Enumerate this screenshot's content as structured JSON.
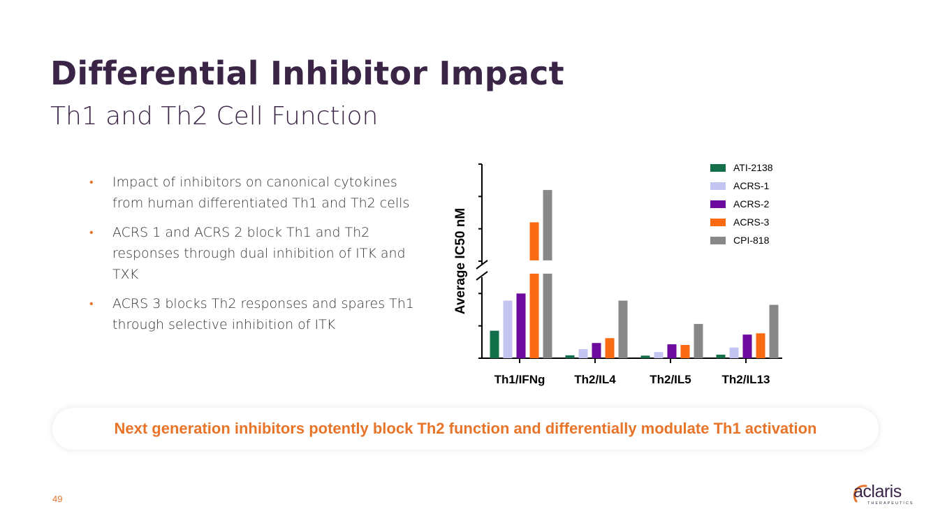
{
  "slide": {
    "title": "Differential Inhibitor Impact",
    "subtitle": "Th1 and Th2 Cell Function",
    "bullets": [
      "Impact of inhibitors on canonical cytokines from human differentiated Th1 and Th2 cells",
      "ACRS 1 and ACRS 2 block Th1 and Th2 responses through dual inhibition of ITK and TXK",
      "ACRS 3 blocks Th2 responses and spares Th1 through selective inhibition of ITK"
    ],
    "bullet_symbol": "•",
    "banner": "Next generation inhibitors potently block Th2 function and differentially modulate Th1 activation",
    "page_number": "49",
    "logo": {
      "word": "aclaris",
      "tagline": "THERAPEUTICS",
      "registered": "®"
    }
  },
  "colors": {
    "title": "#3b2547",
    "accent": "#e8742a",
    "ATI-2138": "#13704a",
    "ACRS-1": "#c5c5f2",
    "ACRS-2": "#6c0a9e",
    "ACRS-3": "#fa6a12",
    "CPI-818": "#888888"
  },
  "chart_data": {
    "type": "bar",
    "title": "",
    "xlabel": "",
    "ylabel": "Average IC50 nM",
    "y_axis_note": "broken y-axis; tick values not labeled; values are relative (tick units)",
    "ylim": [
      0,
      6
    ],
    "axis_break_at": 2.7,
    "categories": [
      "Th1/IFNg",
      "Th2/IL4",
      "Th2/IL5",
      "Th2/IL13"
    ],
    "series": [
      {
        "name": "ATI-2138",
        "values": [
          0.85,
          0.09,
          0.08,
          0.11
        ]
      },
      {
        "name": "ACRS-1",
        "values": [
          1.78,
          0.28,
          0.19,
          0.33
        ]
      },
      {
        "name": "ACRS-2",
        "values": [
          2.0,
          0.47,
          0.43,
          0.73
        ]
      },
      {
        "name": "ACRS-3",
        "values": [
          4.2,
          0.62,
          0.41,
          0.77
        ]
      },
      {
        "name": "CPI-818",
        "values": [
          5.2,
          1.78,
          1.06,
          1.65
        ]
      }
    ],
    "legend_position": "top-right",
    "grid": false
  }
}
